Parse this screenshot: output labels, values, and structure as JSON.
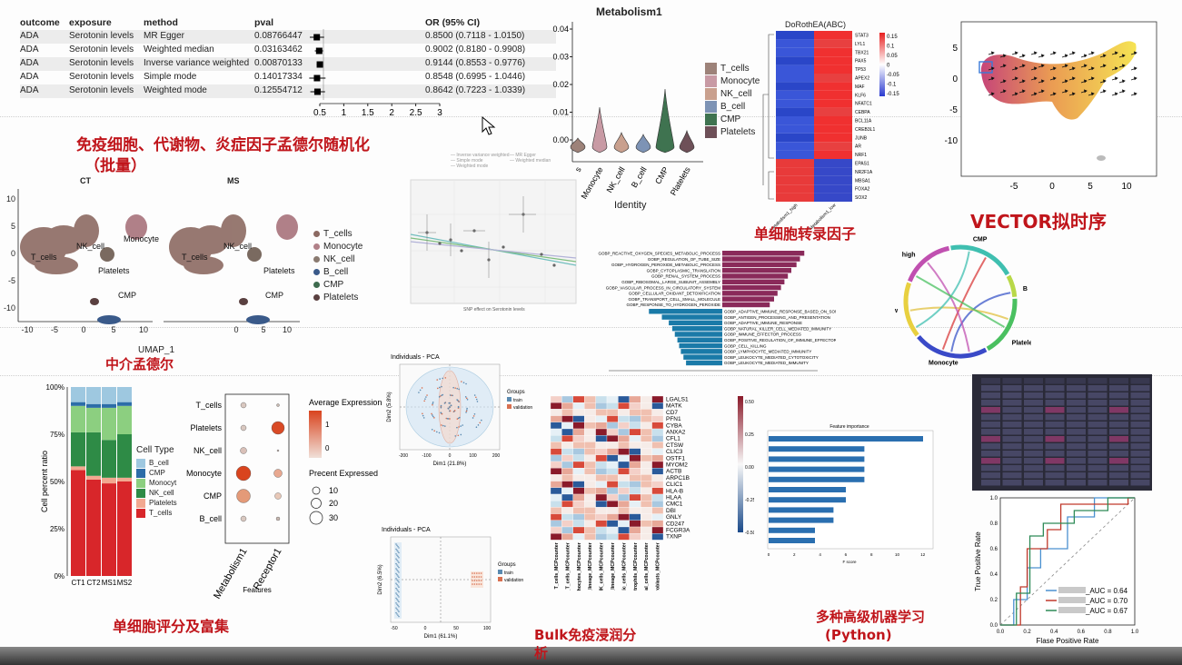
{
  "mr_table": {
    "headers": [
      "outcome",
      "exposure",
      "method",
      "pval",
      "OR (95% CI)"
    ],
    "rows": [
      {
        "outcome": "ADA",
        "exposure": "Serotonin levels",
        "method": "MR Egger",
        "pval": "0.08766447",
        "or": "0.8500 (0.7118 - 1.0150)",
        "est": 0.85,
        "lo": 0.7118,
        "hi": 1.015
      },
      {
        "outcome": "ADA",
        "exposure": "Serotonin levels",
        "method": "Weighted median",
        "pval": "0.03163462",
        "or": "0.9002 (0.8180 - 0.9908)",
        "est": 0.9002,
        "lo": 0.818,
        "hi": 0.9908
      },
      {
        "outcome": "ADA",
        "exposure": "Serotonin levels",
        "method": "Inverse variance weighted",
        "pval": "0.00870133",
        "or": "0.9144 (0.8553 - 0.9776)",
        "est": 0.9144,
        "lo": 0.8553,
        "hi": 0.9776
      },
      {
        "outcome": "ADA",
        "exposure": "Serotonin levels",
        "method": "Simple mode",
        "pval": "0.14017334",
        "or": "0.8548 (0.6995 - 1.0446)",
        "est": 0.8548,
        "lo": 0.6995,
        "hi": 1.0446
      },
      {
        "outcome": "ADA",
        "exposure": "Serotonin levels",
        "method": "Weighted mode",
        "pval": "0.12554712",
        "or": "0.8642 (0.7223 - 1.0339)",
        "est": 0.8642,
        "lo": 0.7223,
        "hi": 1.0339
      }
    ],
    "axis_ticks": [
      "0.5",
      "1",
      "1.5",
      "2",
      "2.5",
      "3"
    ]
  },
  "titles": {
    "mr_batch_1": "免疫细胞、代谢物、炎症因子孟德尔随机化",
    "mr_batch_2": "（批量）",
    "mediation": "中介孟德尔",
    "tf": "单细胞转录因子",
    "vector": "VECTOR拟时序",
    "scoring": "单细胞评分及富集",
    "bulk_1": "Bulk免疫浸润分",
    "bulk_2": "析",
    "ml_1": "多种高级机器学习",
    "ml_2": "(Python)"
  },
  "umap": {
    "ct_title": "CT",
    "ms_title": "MS",
    "xlabel": "UMAP_1",
    "xticks": [
      "-10",
      "-5",
      "0",
      "5",
      "10"
    ],
    "yticks": [
      "10",
      "5",
      "0",
      "-5",
      "-10"
    ],
    "labels": [
      "T_cells",
      "NK_cell",
      "Monocyte",
      "Platelets",
      "CMP",
      "B_cell"
    ],
    "legend": [
      {
        "name": "T_cells",
        "color": "#8c6a62"
      },
      {
        "name": "Monocyte",
        "color": "#b08088"
      },
      {
        "name": "NK_cell",
        "color": "#8a7a70"
      },
      {
        "name": "B_cell",
        "color": "#3a5a8a"
      },
      {
        "name": "CMP",
        "color": "#3e6b4e"
      },
      {
        "name": "Platelets",
        "color": "#5a4040"
      }
    ]
  },
  "violin": {
    "title": "Metabolism1",
    "xlabel": "Identity",
    "yticks": [
      "0.04",
      "0.03",
      "0.02",
      "0.01",
      "0.00"
    ],
    "categories": [
      "T_cells",
      "Monocyte",
      "NK_cell",
      "B_cell",
      "CMP",
      "Platelets"
    ],
    "xtick_labels": [
      "s",
      "Monocyte",
      "NK_cell",
      "B_cell",
      "CMP",
      "Platelets"
    ],
    "legend": [
      {
        "name": "T_cells",
        "color": "#9d8279"
      },
      {
        "name": "Monocyte",
        "color": "#c89aa4"
      },
      {
        "name": "NK_cell",
        "color": "#c9a08e"
      },
      {
        "name": "B_cell",
        "color": "#7d93b5"
      },
      {
        "name": "CMP",
        "color": "#3f7350"
      },
      {
        "name": "Platelets",
        "color": "#6e5058"
      }
    ]
  },
  "heatmap_tf": {
    "title": "DoRothEA(ABC)",
    "genes": [
      "STAT3",
      "LYL1",
      "TBX21",
      "PAX5",
      "TP53",
      "APEX2",
      "MAF",
      "KLF6",
      "NFATC1",
      "CEBPA",
      "BCL11A",
      "CREB3L1",
      "JUNB",
      "AR",
      "NRF1",
      "EPAS1",
      "NR2F1A",
      "MBSA1",
      "FOXA2",
      "SOX2"
    ],
    "columns": [
      "Metabolism1_high",
      "Metabolism1_low"
    ],
    "scale": [
      "0.15",
      "0.1",
      "0.05",
      "0",
      "-0.05",
      "-0.1",
      "-0.15"
    ]
  },
  "vector": {
    "xticks": [
      "-5",
      "0",
      "5",
      "10"
    ],
    "yticks": [
      "5",
      "0",
      "-5",
      "-10"
    ]
  },
  "chord": {
    "labels": [
      "CMP",
      "B",
      "Platelets",
      "Monocyte",
      "low",
      "high"
    ]
  },
  "scatter_mr": {
    "legend": [
      "Inverse variance weighted",
      "MR Egger",
      "Simple mode",
      "Weighted median",
      "Weighted mode"
    ],
    "xlabel": "SNP effect on Serotonin levels"
  },
  "gsea_bar": {
    "terms_up": [
      "GOBP_REACTIVE_OXYGEN_SPECIES_METABOLIC_PROCESS",
      "GOBP_REGULATION_OF_TUBE_SIZE",
      "GOBP_HYDROGEN_PEROXIDE_METABOLIC_PROCESS",
      "GOBP_CYTOPLASMIC_TRANSLATION",
      "GOBP_RENAL_SYSTEM_PROCESS",
      "GOBP_RIBOSOMAL_LARGE_SUBUNIT_ASSEMBLY",
      "GOBP_VASCULAR_PROCESS_IN_CIRCULATORY_SYSTEM",
      "GOBP_CELLULAR_OXIDANT_DETOXIFICATION",
      "GOBP_TRANSPORT_CELL_SMALL_MOLECULE",
      "GOBP_RESPONSE_TO_HYDROGEN_PEROXIDE"
    ],
    "terms_down": [
      "GOBP_ADAPTIVE_IMMUNE_RESPONSE_BASED_ON_SOMATIC",
      "GOBP_ANTIGEN_PROCESSING_AND_PRESENTATION",
      "GOBP_ADAPTIVE_IMMUNE_RESPONSE",
      "GOBP_NATURAL_KILLER_CELL_MEDIATED_IMMUNITY",
      "GOBP_IMMUNE_EFFECTOR_PROCESS",
      "GOBP_POSITIVE_REGULATION_OF_IMMUNE_EFFECTOR",
      "GOBP_CELL_KILLING",
      "GOBP_LYMPHOCYTE_MEDIATED_IMMUNITY",
      "GOBP_LEUKOCYTE_MEDIATED_CYTOTOXICITY",
      "GOBP_LEUKOCYTE_MEDIATED_IMMUNITY"
    ],
    "up_values": [
      0.95,
      0.9,
      0.86,
      0.8,
      0.76,
      0.72,
      0.68,
      0.64,
      0.6,
      0.55
    ],
    "down_values": [
      0.85,
      0.7,
      0.62,
      0.58,
      0.55,
      0.52,
      0.5,
      0.48,
      0.45,
      0.42
    ]
  },
  "pca1": {
    "title": "Individuals - PCA",
    "xlabel": "Dim1 (21.8%)",
    "ylabel": "Dim2 (5.8%)",
    "legend_title": "Groups",
    "legend": [
      "train",
      "validation"
    ],
    "xticks": [
      "-200",
      "-100",
      "0",
      "100",
      "200"
    ]
  },
  "pca2": {
    "title": "Individuals - PCA",
    "xlabel": "Dim1 (61.1%)",
    "ylabel": "Dim2 (6.5%)",
    "legend_title": "Groups",
    "legend": [
      "train",
      "validation"
    ],
    "xticks": [
      "-50",
      "0",
      "50",
      "100"
    ]
  },
  "stacked_bar": {
    "ylabel": "Cell percent ratio",
    "categories": [
      "CT1",
      "CT2",
      "MS1",
      "MS2"
    ],
    "yticks": [
      "100%",
      "75%",
      "50%",
      "25%",
      "0%"
    ],
    "legend_title": "Cell Type",
    "series": [
      {
        "name": "T_cells",
        "color": "#d8262a",
        "values": [
          0.56,
          0.51,
          0.49,
          0.5
        ]
      },
      {
        "name": "Platelets",
        "color": "#f2a890",
        "values": [
          0.02,
          0.02,
          0.03,
          0.02
        ]
      },
      {
        "name": "NK_cell",
        "color": "#2e8b46",
        "values": [
          0.18,
          0.23,
          0.2,
          0.23
        ]
      },
      {
        "name": "Monocyt",
        "color": "#8ccf80",
        "values": [
          0.14,
          0.13,
          0.17,
          0.15
        ]
      },
      {
        "name": "CMP",
        "color": "#2c6da8",
        "values": [
          0.02,
          0.02,
          0.02,
          0.02
        ]
      },
      {
        "name": "B_cell",
        "color": "#9ec8e0",
        "values": [
          0.08,
          0.09,
          0.09,
          0.08
        ]
      }
    ]
  },
  "dot_plot": {
    "rows": [
      "T_cells",
      "Platelets",
      "NK_cell",
      "Monocyte",
      "CMP",
      "B_cell"
    ],
    "columns": [
      "Metabolism1",
      "Receptor1"
    ],
    "xlabel": "Features",
    "legend_expr_title": "Average Expression",
    "legend_expr_ticks": [
      "1",
      "0"
    ],
    "legend_pct_title": "Precent Expressed",
    "legend_pct_ticks": [
      "10",
      "20",
      "30"
    ],
    "dots": [
      {
        "row": 0,
        "col": 0,
        "size": 6,
        "color": "#d9c8c0"
      },
      {
        "row": 0,
        "col": 1,
        "size": 3,
        "color": "#c8b8b0"
      },
      {
        "row": 1,
        "col": 0,
        "size": 6,
        "color": "#d9c8c0"
      },
      {
        "row": 1,
        "col": 1,
        "size": 14,
        "color": "#d94a26"
      },
      {
        "row": 2,
        "col": 0,
        "size": 7,
        "color": "#d9c0b8"
      },
      {
        "row": 2,
        "col": 1,
        "size": 2,
        "color": "#c8b8b0"
      },
      {
        "row": 3,
        "col": 0,
        "size": 16,
        "color": "#d9441e"
      },
      {
        "row": 3,
        "col": 1,
        "size": 9,
        "color": "#e8a890"
      },
      {
        "row": 4,
        "col": 0,
        "size": 15,
        "color": "#e49a78"
      },
      {
        "row": 4,
        "col": 1,
        "size": 7,
        "color": "#e8c8b8"
      },
      {
        "row": 5,
        "col": 0,
        "size": 6,
        "color": "#d9c8c0"
      },
      {
        "row": 5,
        "col": 1,
        "size": 4,
        "color": "#c8b8b0"
      }
    ]
  },
  "bulk_heatmap": {
    "genes": [
      "LGALS1",
      "MATK",
      "CD7",
      "PFN1",
      "CYBA",
      "ANXA2",
      "CFL1",
      "CTSW",
      "CLIC3",
      "OSTF1",
      "MYOM2",
      "ACTB",
      "ARPC1B",
      "CLIC1",
      "HLA-B",
      "HLAA",
      "CMC1",
      "DBI",
      "GNLY",
      "CD247",
      "FCGR3A",
      "TXNP"
    ],
    "columns": [
      "T_cells_MCPcounter",
      "CD8_T_cells_MCPcounter",
      "Cytotoxic_lymphocytes_MCPcounter",
      "B_lineage_MCPcounter",
      "NK_cells_MCPcounter",
      "Monocytic_lineage_MCPcounter",
      "Myeloid_dendritic_cells_MCPcounter",
      "Neutrophils_MCPcounter",
      "Endothelial_cells_MCPcounter",
      "Fibroblasts_MCPcounter"
    ],
    "scale": [
      "0.50",
      "0.25",
      "0.00",
      "-0.25",
      "-0.50"
    ]
  },
  "feature_importance": {
    "title": "Feature importance",
    "xlabel": "F score",
    "values": [
      1.0,
      0.62,
      0.62,
      0.62,
      0.62,
      0.5,
      0.5,
      0.42,
      0.42,
      0.3,
      0.3
    ],
    "xticks": [
      "0",
      "2",
      "4",
      "6",
      "8",
      "10",
      "12"
    ]
  },
  "roc": {
    "xlabel": "Flase Positive Rate",
    "ylabel": "True Positive Rate",
    "xticks": [
      "0.0",
      "0.2",
      "0.4",
      "0.6",
      "0.8",
      "1.0"
    ],
    "yticks": [
      "1.0",
      "0.8",
      "0.6",
      "0.4",
      "0.2",
      "0.0"
    ],
    "legend": [
      {
        "label": "_AUC = 0.64",
        "color": "#4a90d0"
      },
      {
        "label": "_AUC = 0.70",
        "color": "#c0392b"
      },
      {
        "label": "_AUC = 0.67",
        "color": "#2e8b57"
      }
    ]
  }
}
